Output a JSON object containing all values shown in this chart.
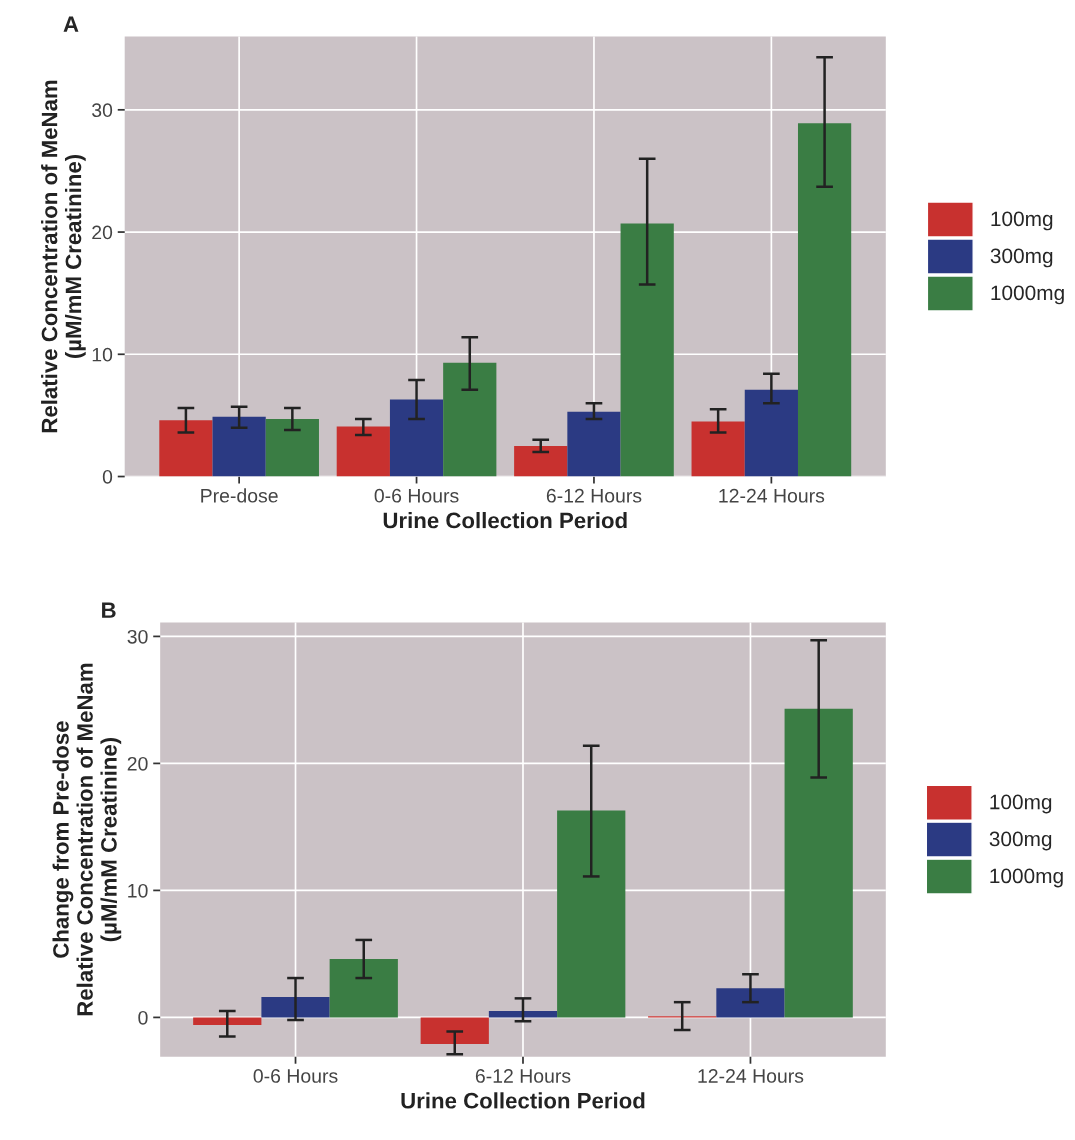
{
  "chart_data": [
    {
      "type": "bar",
      "annotations": [
        "A"
      ],
      "xlabel": "Urine Collection Period",
      "ylabel": "Relative Concentration of MeNam\n(µM/mM Creatinine)",
      "categories": [
        "Pre-dose",
        "0-6 Hours",
        "6-12 Hours",
        "12-24 Hours"
      ],
      "series": [
        {
          "name": "100mg",
          "color": "#c8312f",
          "values": [
            4.6,
            4.1,
            2.5,
            4.5
          ],
          "errors": [
            [
              3.6,
              5.6
            ],
            [
              3.4,
              4.7
            ],
            [
              2.0,
              3.0
            ],
            [
              3.6,
              5.5
            ]
          ]
        },
        {
          "name": "300mg",
          "color": "#2b3a83",
          "values": [
            4.9,
            6.3,
            5.3,
            7.1
          ],
          "errors": [
            [
              4.0,
              5.7
            ],
            [
              4.7,
              7.9
            ],
            [
              4.7,
              6.0
            ],
            [
              6.0,
              8.4
            ]
          ]
        },
        {
          "name": "1000mg",
          "color": "#3a7d44",
          "values": [
            4.7,
            9.3,
            20.7,
            28.9
          ],
          "errors": [
            [
              3.8,
              5.6
            ],
            [
              7.1,
              11.4
            ],
            [
              15.7,
              26.0
            ],
            [
              23.7,
              34.3
            ]
          ]
        }
      ],
      "ylim": [
        0,
        36
      ],
      "yticks": [
        0,
        10,
        20,
        30
      ],
      "grid": true,
      "legend": "right"
    },
    {
      "type": "bar",
      "annotations": [
        "B"
      ],
      "xlabel": "Urine Collection Period",
      "ylabel": "Change from Pre-dose\nRelative Concentration of MeNam\n(µM/mM Creatinine)",
      "categories": [
        "0-6 Hours",
        "6-12 Hours",
        "12-24 Hours"
      ],
      "series": [
        {
          "name": "100mg",
          "color": "#c8312f",
          "values": [
            -0.6,
            -2.1,
            0.1
          ],
          "errors": [
            [
              -1.5,
              0.5
            ],
            [
              -2.9,
              -1.1
            ],
            [
              -1.0,
              1.2
            ]
          ]
        },
        {
          "name": "300mg",
          "color": "#2b3a83",
          "values": [
            1.6,
            0.5,
            2.3
          ],
          "errors": [
            [
              -0.2,
              3.1
            ],
            [
              -0.3,
              1.5
            ],
            [
              1.2,
              3.4
            ]
          ]
        },
        {
          "name": "1000mg",
          "color": "#3a7d44",
          "values": [
            4.6,
            16.3,
            24.3
          ],
          "errors": [
            [
              3.1,
              6.1
            ],
            [
              11.1,
              21.4
            ],
            [
              18.9,
              29.7
            ]
          ]
        }
      ],
      "ylim": [
        -3.1,
        31.1
      ],
      "yticks": [
        0,
        10,
        20,
        30
      ],
      "grid": true,
      "legend": "right"
    }
  ]
}
